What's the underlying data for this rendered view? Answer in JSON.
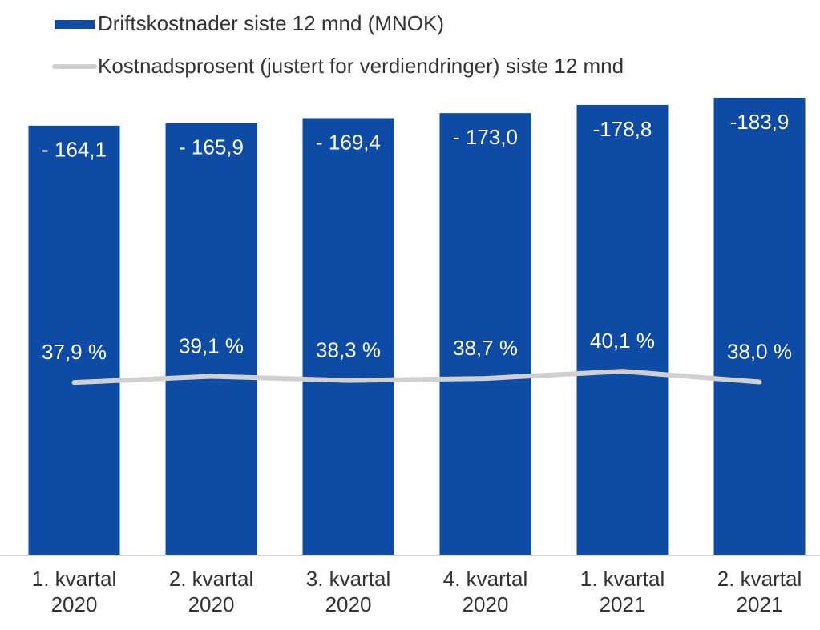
{
  "chart_data": {
    "type": "bar",
    "categories": [
      "1. kvartal 2020",
      "2. kvartal 2020",
      "3. kvartal 2020",
      "4. kvartal 2020",
      "1. kvartal 2021",
      "2. kvartal 2021"
    ],
    "series": [
      {
        "name": "Driftskostnader siste 12 mnd (MNOK)",
        "type": "bar",
        "color": "#0e4ba5",
        "values": [
          -164.1,
          -165.9,
          -169.4,
          -173.0,
          -178.8,
          -183.9
        ],
        "value_labels": [
          "- 164,1",
          "- 165,9",
          "- 169,4",
          "- 173,0",
          "-178,8",
          "-183,9"
        ]
      },
      {
        "name": "Kostnadsprosent (justert for verdiendringer) siste 12 mnd",
        "type": "line",
        "color": "#d0d0d0",
        "axis": "y2",
        "values": [
          37.9,
          39.1,
          38.3,
          38.7,
          40.1,
          38.0
        ],
        "value_labels": [
          "37,9 %",
          "39,1 %",
          "38,3 %",
          "38,7 %",
          "40,1 %",
          "38,0 %"
        ]
      }
    ],
    "ylim": [
      140,
      -185
    ],
    "y2lim": [
      4,
      94
    ]
  }
}
